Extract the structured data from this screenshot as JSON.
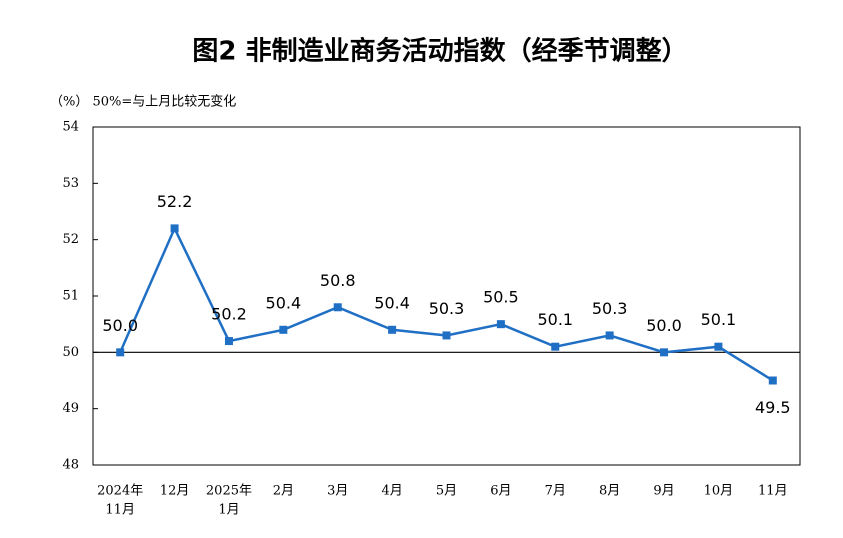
{
  "chart_data": {
    "type": "line",
    "title": "图2 非制造业商务活动指数（经季节调整）",
    "subtitle": "（%） 50%=与上月比较无变化",
    "categories": [
      [
        "2024年",
        "11月"
      ],
      [
        "12月"
      ],
      [
        "2025年",
        "1月"
      ],
      [
        "2月"
      ],
      [
        "3月"
      ],
      [
        "4月"
      ],
      [
        "5月"
      ],
      [
        "6月"
      ],
      [
        "7月"
      ],
      [
        "8月"
      ],
      [
        "9月"
      ],
      [
        "10月"
      ],
      [
        "11月"
      ]
    ],
    "series": [
      {
        "color": "#1f6fc5",
        "values": [
          50.0,
          52.2,
          50.2,
          50.4,
          50.8,
          50.4,
          50.3,
          50.5,
          50.1,
          50.3,
          50.0,
          50.1,
          49.5
        ],
        "value_labels": [
          "50.0",
          "52.2",
          "50.2",
          "50.4",
          "50.8",
          "50.4",
          "50.3",
          "50.5",
          "50.1",
          "50.3",
          "50.0",
          "50.1",
          "49.5"
        ]
      }
    ],
    "ylim": [
      48,
      54
    ],
    "yticks": [
      48,
      49,
      50,
      51,
      52,
      53,
      54
    ],
    "reference_line": 50
  }
}
